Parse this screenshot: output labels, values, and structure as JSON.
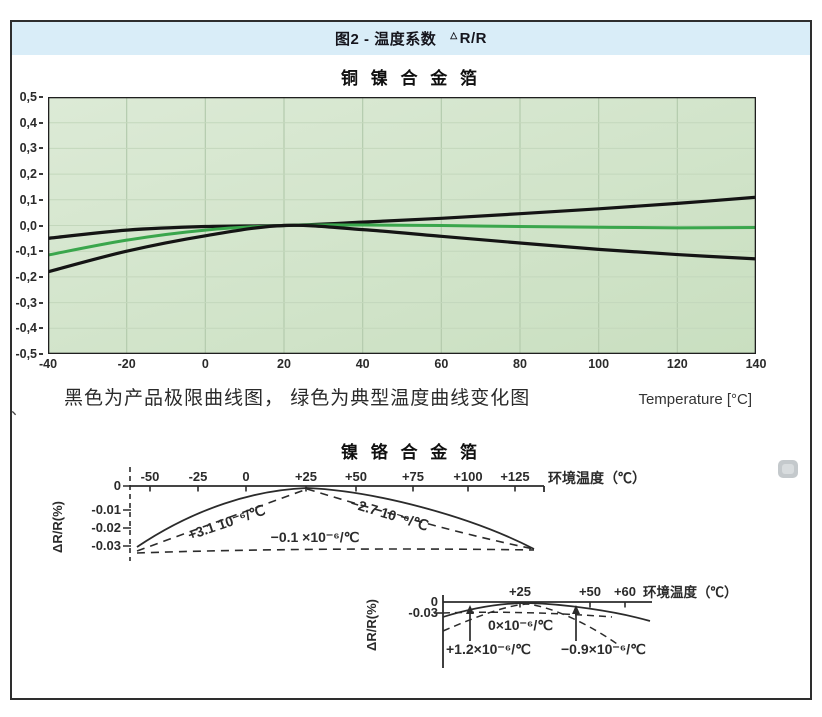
{
  "header": {
    "title": "图2 - 温度系数",
    "delta": "△",
    "ratio": "R/R",
    "band_color": "#d9edf8"
  },
  "stray_mark": "、",
  "chart_data": [
    {
      "type": "line",
      "title": "铜 镍 合 金 箔",
      "caption": "黑色为产品极限曲线图， 绿色为典型温度曲线变化图",
      "x_label": "Temperature [°C]",
      "xlim": [
        -40,
        140
      ],
      "ylim": [
        -0.5,
        0.5
      ],
      "grid": true,
      "plot_bg_from": "#dcead6",
      "plot_bg_to": "#c9dfc0",
      "x_ticks": [
        -40,
        -20,
        0,
        20,
        40,
        60,
        80,
        100,
        120,
        140
      ],
      "y_ticks": [
        0.5,
        0.4,
        0.3,
        0.2,
        0.1,
        0.0,
        -0.1,
        -0.2,
        -0.3,
        -0.4,
        -0.5
      ],
      "y_tick_labels": [
        "0,5",
        "0,4",
        "0,3",
        "0,2",
        "0,1",
        "0,0",
        "-0,1",
        "-0,2",
        "-0,3",
        "-0,4",
        "-0,5"
      ],
      "series": [
        {
          "name": "产品极限上曲线（黑）",
          "color": "#141414",
          "width": 3.2,
          "values": [
            [
              -40,
              -0.05
            ],
            [
              -20,
              -0.018
            ],
            [
              0,
              -0.004
            ],
            [
              20,
              0
            ],
            [
              40,
              0.013
            ],
            [
              60,
              0.028
            ],
            [
              80,
              0.046
            ],
            [
              100,
              0.065
            ],
            [
              120,
              0.086
            ],
            [
              140,
              0.11
            ]
          ]
        },
        {
          "name": "典型温度曲线（绿）",
          "color": "#3aa64c",
          "width": 3,
          "values": [
            [
              -40,
              -0.115
            ],
            [
              -20,
              -0.057
            ],
            [
              0,
              -0.018
            ],
            [
              20,
              0
            ],
            [
              40,
              0.002
            ],
            [
              60,
              0
            ],
            [
              80,
              -0.004
            ],
            [
              100,
              -0.007
            ],
            [
              120,
              -0.009
            ],
            [
              140,
              -0.008
            ]
          ]
        },
        {
          "name": "产品极限下曲线（黑）",
          "color": "#141414",
          "width": 3.2,
          "values": [
            [
              -40,
              -0.18
            ],
            [
              -20,
              -0.1
            ],
            [
              0,
              -0.04
            ],
            [
              20,
              0
            ],
            [
              40,
              -0.016
            ],
            [
              60,
              -0.042
            ],
            [
              80,
              -0.068
            ],
            [
              100,
              -0.093
            ],
            [
              120,
              -0.113
            ],
            [
              140,
              -0.13
            ]
          ]
        }
      ]
    },
    {
      "type": "line",
      "title": "镍 铬 合 金 箔",
      "y_label": "ΔR/R(%)",
      "x_axis_label": "环境温度（℃）",
      "x_ticks": [
        "-50",
        "-25",
        "0",
        "+25",
        "+50",
        "+75",
        "+100",
        "+125"
      ],
      "y_ticks": [
        "0",
        "-0.01",
        "-0.02",
        "-0.03"
      ],
      "annotations": [
        {
          "text": "+3.1 10⁻⁶/℃"
        },
        {
          "text": "−2.7 10⁻⁶/℃"
        },
        {
          "text": "−0.1 ×10⁻⁶/℃"
        }
      ]
    },
    {
      "type": "line",
      "y_label": "ΔR/R(%)",
      "x_axis_label": "环境温度（℃）",
      "x_ticks": [
        "+25",
        "+50",
        "+60"
      ],
      "y_ticks": [
        "0",
        "-0.03"
      ],
      "annotations": [
        {
          "text": "0×10⁻⁶/℃"
        },
        {
          "text": "+1.2×10⁻⁶/℃"
        },
        {
          "text": "−0.9×10⁻⁶/℃"
        }
      ]
    }
  ]
}
